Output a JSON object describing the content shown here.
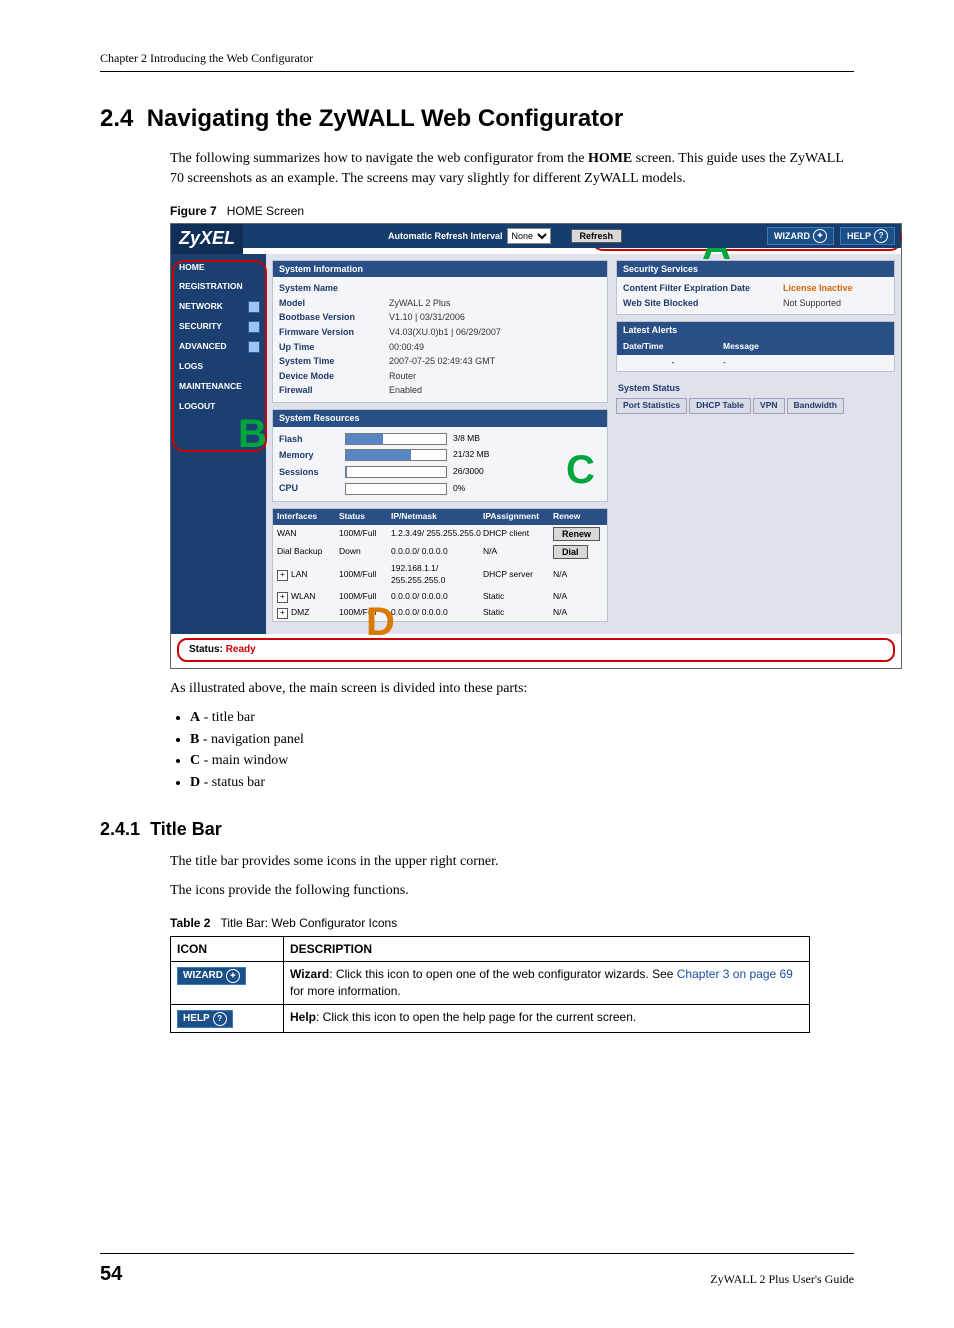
{
  "header": {
    "chapter": "Chapter 2 Introducing the Web Configurator"
  },
  "section": {
    "number": "2.4",
    "title": "Navigating the ZyWALL Web Configurator",
    "intro_a": "The following summarizes how to navigate the web configurator from the ",
    "intro_home": "HOME",
    "intro_b": " screen. This guide uses the ZyWALL 70 screenshots as an example. The screens may vary slightly for different ZyWALL models.",
    "fig_label": "Figure 7",
    "fig_caption": "HOME Screen",
    "parts_intro": "As illustrated above, the main screen is divided into these parts:",
    "parts": [
      {
        "k": "A",
        "v": "- title bar"
      },
      {
        "k": "B",
        "v": "- navigation panel"
      },
      {
        "k": "C",
        "v": "- main window"
      },
      {
        "k": "D",
        "v": "- status bar"
      }
    ]
  },
  "subsection": {
    "number": "2.4.1",
    "title": "Title Bar",
    "p1": "The title bar provides some icons in the upper right corner.",
    "p2": "The icons provide the following functions.",
    "tab_label": "Table 2",
    "tab_caption": "Title Bar: Web Configurator Icons",
    "thead": {
      "c1": "ICON",
      "c2": "DESCRIPTION"
    },
    "rows": [
      {
        "icon": "WIZARD",
        "desc_b": "Wizard",
        "desc_1": ": Click this icon to open one of the web configurator wizards. See ",
        "xref": "Chapter 3 on page 69",
        "desc_2": " for more information."
      },
      {
        "icon": "HELP",
        "desc_b": "Help",
        "desc_1": ": Click this icon to open the help page for the current screen.",
        "xref": "",
        "desc_2": ""
      }
    ]
  },
  "screenshot": {
    "logo": "ZyXEL",
    "titlebar": {
      "refresh_label": "Automatic Refresh Interval",
      "refresh_value": "None",
      "refresh_btn": "Refresh",
      "wizard": "WIZARD",
      "help": "HELP",
      "help_q": "?"
    },
    "nav": [
      {
        "label": "HOME",
        "exp": false
      },
      {
        "label": "REGISTRATION",
        "exp": false
      },
      {
        "label": "NETWORK",
        "exp": true
      },
      {
        "label": "SECURITY",
        "exp": true
      },
      {
        "label": "ADVANCED",
        "exp": true
      },
      {
        "label": "LOGS",
        "exp": false
      },
      {
        "label": "MAINTENANCE",
        "exp": false
      },
      {
        "label": "LOGOUT",
        "exp": false
      }
    ],
    "sysinfo": {
      "hdr": "System Information",
      "rows": [
        {
          "k": "System Name",
          "v": ""
        },
        {
          "k": "Model",
          "v": "ZyWALL 2 Plus"
        },
        {
          "k": "Bootbase Version",
          "v": "V1.10 | 03/31/2006"
        },
        {
          "k": "Firmware Version",
          "v": "V4.03(XU.0)b1 | 06/29/2007"
        },
        {
          "k": "Up Time",
          "v": "00:00:49"
        },
        {
          "k": "System Time",
          "v": "2007-07-25 02:49:43 GMT"
        },
        {
          "k": "Device Mode",
          "v": "Router"
        },
        {
          "k": "Firewall",
          "v": "Enabled"
        }
      ]
    },
    "res": {
      "hdr": "System Resources",
      "rows": [
        {
          "k": "Flash",
          "val": "3/8 MB",
          "pct": 37
        },
        {
          "k": "Memory",
          "val": "21/32 MB",
          "pct": 65
        },
        {
          "k": "Sessions",
          "val": "26/3000",
          "pct": 1
        },
        {
          "k": "CPU",
          "val": "0%",
          "pct": 0
        }
      ]
    },
    "iface": {
      "hdr": {
        "c1": "Interfaces",
        "c2": "Status",
        "c3": "IP/Netmask",
        "c4": "IPAssignment",
        "c5": "Renew"
      },
      "rows": [
        {
          "c1": "WAN",
          "c2": "100M/Full",
          "c3": "1.2.3.49/ 255.255.255.0",
          "c4": "DHCP client",
          "c5": "Renew",
          "btn": true,
          "exp": false
        },
        {
          "c1": "Dial Backup",
          "c2": "Down",
          "c3": "0.0.0.0/ 0.0.0.0",
          "c4": "N/A",
          "c5": "Dial",
          "btn": true,
          "exp": false
        },
        {
          "c1": "LAN",
          "c2": "100M/Full",
          "c3": "192.168.1.1/ 255.255.255.0",
          "c4": "DHCP server",
          "c5": "N/A",
          "btn": false,
          "exp": true
        },
        {
          "c1": "WLAN",
          "c2": "100M/Full",
          "c3": "0.0.0.0/ 0.0.0.0",
          "c4": "Static",
          "c5": "N/A",
          "btn": false,
          "exp": true
        },
        {
          "c1": "DMZ",
          "c2": "100M/Full",
          "c3": "0.0.0.0/ 0.0.0.0",
          "c4": "Static",
          "c5": "N/A",
          "btn": false,
          "exp": true
        }
      ]
    },
    "secsvc": {
      "hdr": "Security Services",
      "rows": [
        {
          "k": "Content Filter Expiration Date",
          "v": "License Inactive",
          "orange": true
        },
        {
          "k": "Web Site Blocked",
          "v": "Not Supported",
          "orange": false
        }
      ]
    },
    "alerts": {
      "hdr": "Latest Alerts",
      "c1": "Date/Time",
      "c2": "Message",
      "r1": "-",
      "r2": "-"
    },
    "sysstat": {
      "hdr": "System Status",
      "tabs": [
        "Port Statistics",
        "DHCP Table",
        "VPN",
        "Bandwidth"
      ]
    },
    "status": {
      "label": "Status:",
      "value": "Ready"
    }
  },
  "footer": {
    "page": "54",
    "book": "ZyWALL 2 Plus User's Guide"
  }
}
